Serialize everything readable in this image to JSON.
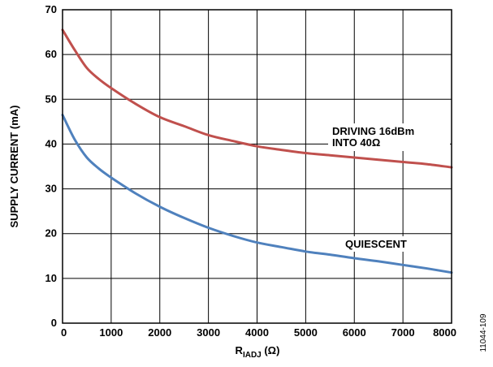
{
  "chart_data": {
    "type": "line",
    "xlabel_main": "R",
    "xlabel_sub": "IADJ",
    "xlabel_unit": " (Ω)",
    "ylabel": "SUPPLY CURRENT (mA)",
    "xlim": [
      0,
      8000
    ],
    "ylim": [
      0,
      70
    ],
    "x_ticks": [
      "0",
      "1000",
      "2000",
      "3000",
      "4000",
      "5000",
      "6000",
      "7000",
      "8000"
    ],
    "y_ticks": [
      "0",
      "10",
      "20",
      "30",
      "40",
      "50",
      "60",
      "70"
    ],
    "grid": true,
    "x": [
      0,
      250,
      500,
      750,
      1000,
      1500,
      2000,
      2500,
      3000,
      3500,
      4000,
      4500,
      5000,
      5500,
      6000,
      6500,
      7000,
      7500,
      8000
    ],
    "series": [
      {
        "name_lines": [
          "DRIVING 16dBm",
          "INTO 40Ω"
        ],
        "color": "#c0504d",
        "values": [
          65.5,
          61,
          57,
          54.5,
          52.5,
          49,
          46,
          44,
          42,
          40.7,
          39.5,
          38.7,
          38,
          37.5,
          37,
          36.5,
          36,
          35.5,
          34.8
        ]
      },
      {
        "name_lines": [
          "QUIESCENT"
        ],
        "color": "#4f81bd",
        "values": [
          46.5,
          41,
          37,
          34.5,
          32.5,
          29,
          26,
          23.5,
          21.3,
          19.5,
          18,
          17,
          16,
          15.3,
          14.5,
          13.8,
          13,
          12.2,
          11.3
        ]
      }
    ],
    "figure_id": "11044-109"
  }
}
